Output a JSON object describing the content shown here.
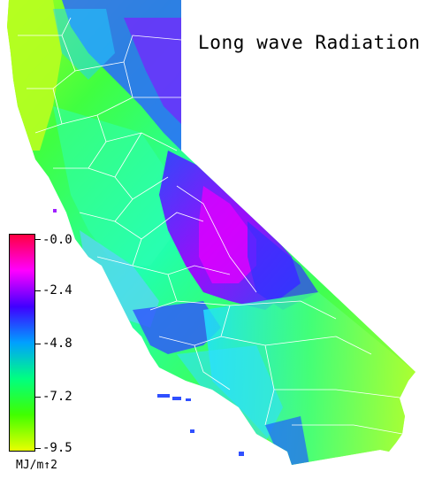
{
  "map": {
    "title": "Long wave Radiation",
    "region": "California"
  },
  "legend": {
    "ticks": [
      "-0.0",
      "-2.4",
      "-4.8",
      "-7.2",
      "-9.5"
    ],
    "unit": "MJ/m↑2",
    "colors": [
      "#ff0040",
      "#ff00ff",
      "#4000ff",
      "#00a0ff",
      "#00ff80",
      "#40ff00",
      "#e8ff00"
    ]
  }
}
